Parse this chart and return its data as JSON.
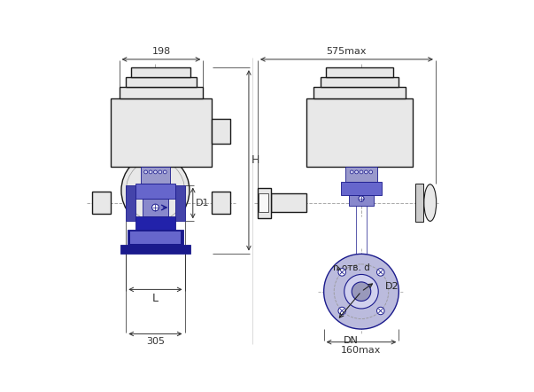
{
  "bg_color": "#ffffff",
  "line_color": "#1a1a1a",
  "blue_dark": "#1a1a8c",
  "blue_mid": "#2222aa",
  "blue_light": "#6666cc",
  "blue_fill": "#8888cc",
  "blue_flange": "#4444aa",
  "blue_valve": "#3333bb",
  "gray_light": "#e8e8e8",
  "gray_mid": "#cccccc",
  "gray_dark": "#999999",
  "dim_color": "#222222",
  "dash_color": "#aaaaaa",
  "fig_width": 6.03,
  "fig_height": 4.42,
  "dpi": 100,
  "dim_198": "198",
  "dim_305": "305",
  "dim_575": "575max",
  "dim_160": "160max",
  "dim_H": "H",
  "dim_D1": "D1",
  "dim_D2": "D2",
  "dim_L": "L",
  "dim_DN": "DN",
  "dim_n": "n отв. d"
}
